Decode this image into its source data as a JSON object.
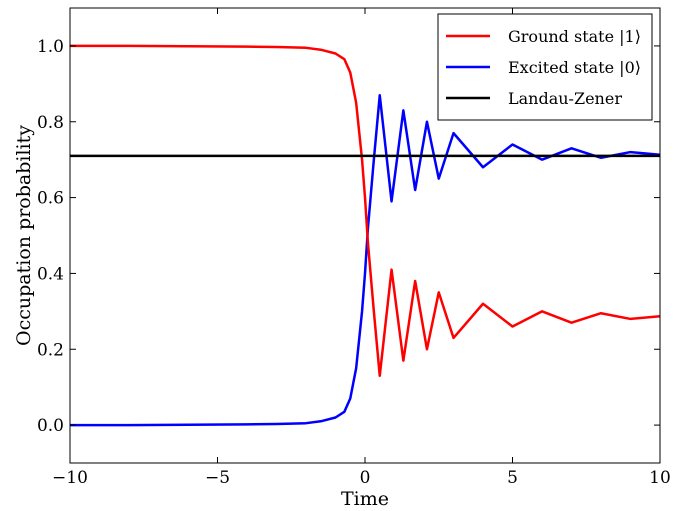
{
  "chart_data": {
    "type": "line",
    "title": "",
    "xlabel": "Time",
    "ylabel": "Occupation probability",
    "xlim": [
      -10,
      10
    ],
    "ylim": [
      -0.1,
      1.1
    ],
    "xticks": [
      -10,
      -5,
      0,
      5,
      10
    ],
    "xtick_labels": [
      "−10",
      "−5",
      "0",
      "5",
      "10"
    ],
    "yticks": [
      0.0,
      0.2,
      0.4,
      0.6,
      0.8,
      1.0
    ],
    "ytick_labels": [
      "0.0",
      "0.2",
      "0.4",
      "0.6",
      "0.8",
      "1.0"
    ],
    "grid": false,
    "legend_position": "top-right",
    "landau_zener_probability": 0.71,
    "series": [
      {
        "name": "Ground state |1⟩",
        "color": "#ff0000",
        "x": [
          -10,
          -8,
          -6,
          -4,
          -3,
          -2,
          -1.5,
          -1,
          -0.7,
          -0.5,
          -0.3,
          -0.1,
          0,
          0.1,
          0.3,
          0.5,
          0.9,
          1.3,
          1.7,
          2.1,
          2.5,
          3,
          4,
          5,
          6,
          7,
          8,
          9,
          10
        ],
        "values": [
          1.0,
          1.0,
          0.999,
          0.998,
          0.997,
          0.995,
          0.99,
          0.98,
          0.965,
          0.93,
          0.85,
          0.7,
          0.6,
          0.48,
          0.3,
          0.13,
          0.41,
          0.17,
          0.38,
          0.2,
          0.35,
          0.23,
          0.32,
          0.26,
          0.3,
          0.27,
          0.295,
          0.28,
          0.287
        ]
      },
      {
        "name": "Excited state |0⟩",
        "color": "#0000ff",
        "x": [
          -10,
          -8,
          -6,
          -4,
          -3,
          -2,
          -1.5,
          -1,
          -0.7,
          -0.5,
          -0.3,
          -0.1,
          0,
          0.1,
          0.3,
          0.5,
          0.9,
          1.3,
          1.7,
          2.1,
          2.5,
          3,
          4,
          5,
          6,
          7,
          8,
          9,
          10
        ],
        "values": [
          0.0,
          0.0,
          0.001,
          0.002,
          0.003,
          0.005,
          0.01,
          0.02,
          0.035,
          0.07,
          0.15,
          0.3,
          0.4,
          0.52,
          0.7,
          0.87,
          0.59,
          0.83,
          0.62,
          0.8,
          0.65,
          0.77,
          0.68,
          0.74,
          0.7,
          0.73,
          0.705,
          0.72,
          0.713
        ]
      },
      {
        "name": "Landau-Zener",
        "color": "#000000",
        "x": [
          -10,
          10
        ],
        "values": [
          0.71,
          0.71
        ]
      }
    ]
  }
}
